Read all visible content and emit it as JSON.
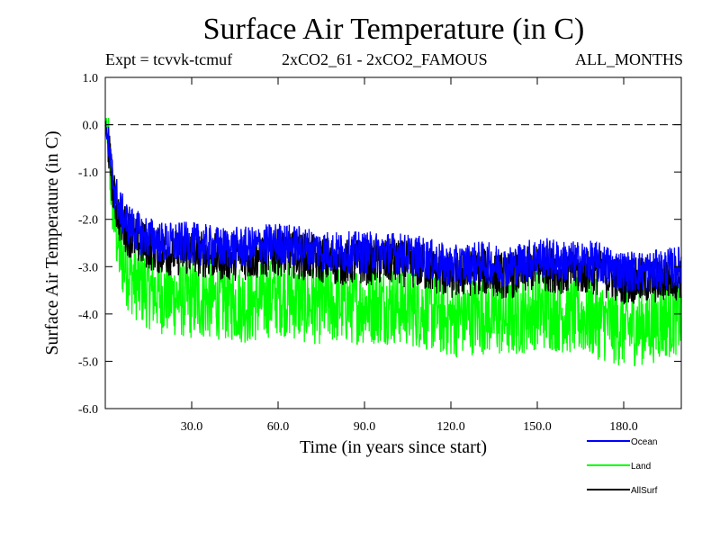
{
  "header": {
    "title": "Surface Air Temperature (in C)",
    "expt": "Expt = tcvvk-tcmuf",
    "comparison": "2xCO2_61 - 2xCO2_FAMOUS",
    "months": "ALL_MONTHS"
  },
  "chart_data": {
    "type": "line",
    "title": "Surface Air Temperature (in C)",
    "xlabel": "Time (in years since start)",
    "ylabel": "Surface Air Temperature (in C)",
    "xlim": [
      0,
      200
    ],
    "ylim": [
      -6.0,
      1.0
    ],
    "x_ticks": [
      30,
      60,
      90,
      120,
      150,
      180
    ],
    "x_tick_labels": [
      "30.0",
      "60.0",
      "90.0",
      "120.0",
      "150.0",
      "180.0"
    ],
    "y_ticks": [
      1.0,
      0.0,
      -1.0,
      -2.0,
      -3.0,
      -4.0,
      -5.0,
      -6.0
    ],
    "y_tick_labels": [
      "1.0",
      "0.0",
      "-1.0",
      "-2.0",
      "-3.0",
      "-4.0",
      "-5.0",
      "-6.0"
    ],
    "reference_line": 0.0,
    "grid": false,
    "legend_position": "bottom-right",
    "series": [
      {
        "name": "Land",
        "color": "#00ff00",
        "x": [
          0,
          1,
          2,
          3,
          5,
          8,
          12,
          20,
          30,
          40,
          50,
          60,
          70,
          80,
          90,
          100,
          110,
          120,
          130,
          140,
          150,
          160,
          170,
          180,
          190,
          200
        ],
        "values": [
          0.0,
          -0.3,
          -1.2,
          -1.9,
          -2.7,
          -3.1,
          -3.4,
          -3.6,
          -3.7,
          -3.7,
          -3.8,
          -3.6,
          -3.8,
          -3.8,
          -3.8,
          -3.8,
          -3.9,
          -4.1,
          -4.0,
          -4.1,
          -3.9,
          -4.0,
          -4.1,
          -4.3,
          -4.2,
          -4.0
        ],
        "noise": 0.85
      },
      {
        "name": "AllSurf",
        "color": "#000000",
        "x": [
          0,
          1,
          2,
          3,
          5,
          8,
          12,
          20,
          30,
          40,
          50,
          60,
          70,
          80,
          90,
          100,
          110,
          120,
          130,
          140,
          150,
          160,
          170,
          180,
          190,
          200
        ],
        "values": [
          0.0,
          -0.4,
          -1.0,
          -1.5,
          -2.0,
          -2.3,
          -2.5,
          -2.7,
          -2.7,
          -2.8,
          -2.8,
          -2.7,
          -2.8,
          -2.9,
          -2.9,
          -2.9,
          -3.0,
          -3.2,
          -3.1,
          -3.2,
          -3.0,
          -3.1,
          -3.1,
          -3.3,
          -3.3,
          -3.2
        ],
        "noise": 0.5
      },
      {
        "name": "Ocean",
        "color": "#0000ff",
        "x": [
          0,
          1,
          2,
          3,
          5,
          8,
          12,
          20,
          30,
          40,
          50,
          60,
          70,
          80,
          90,
          100,
          110,
          120,
          130,
          140,
          150,
          160,
          170,
          180,
          190,
          200
        ],
        "values": [
          0.0,
          -0.4,
          -0.9,
          -1.3,
          -1.8,
          -2.1,
          -2.3,
          -2.5,
          -2.5,
          -2.6,
          -2.6,
          -2.5,
          -2.6,
          -2.7,
          -2.7,
          -2.7,
          -2.8,
          -3.0,
          -2.9,
          -3.0,
          -2.8,
          -2.9,
          -2.9,
          -3.1,
          -3.1,
          -3.0
        ],
        "noise": 0.45
      }
    ]
  },
  "legend": {
    "items": [
      {
        "label": "Ocean",
        "color": "#0000ff"
      },
      {
        "label": "Land",
        "color": "#00ff00"
      },
      {
        "label": "AllSurf",
        "color": "#000000"
      }
    ]
  }
}
